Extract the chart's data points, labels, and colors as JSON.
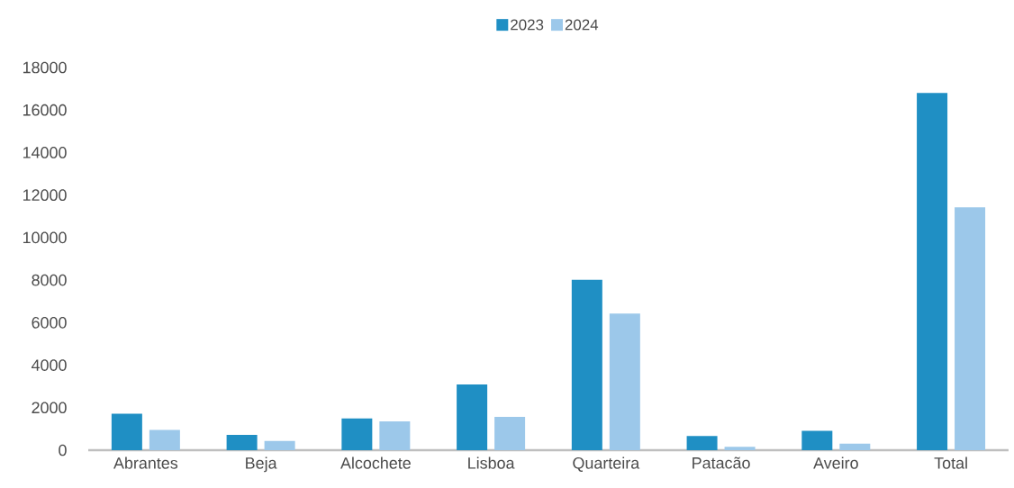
{
  "chart_data": {
    "type": "bar",
    "categories": [
      "Abrantes",
      "Beja",
      "Alcochete",
      "Lisboa",
      "Quarteira",
      "Patacão",
      "Aveiro",
      "Total"
    ],
    "series": [
      {
        "name": "2023",
        "color": "#1f8fc4",
        "values": [
          1720,
          720,
          1490,
          3090,
          8010,
          670,
          910,
          16800
        ]
      },
      {
        "name": "2024",
        "color": "#9cc8ea",
        "values": [
          950,
          430,
          1360,
          1570,
          6430,
          160,
          310,
          11420
        ]
      }
    ],
    "ylim": [
      0,
      18000
    ],
    "yticks": [
      0,
      2000,
      4000,
      6000,
      8000,
      10000,
      12000,
      14000,
      16000,
      18000
    ],
    "grid": false,
    "legend": "top"
  }
}
